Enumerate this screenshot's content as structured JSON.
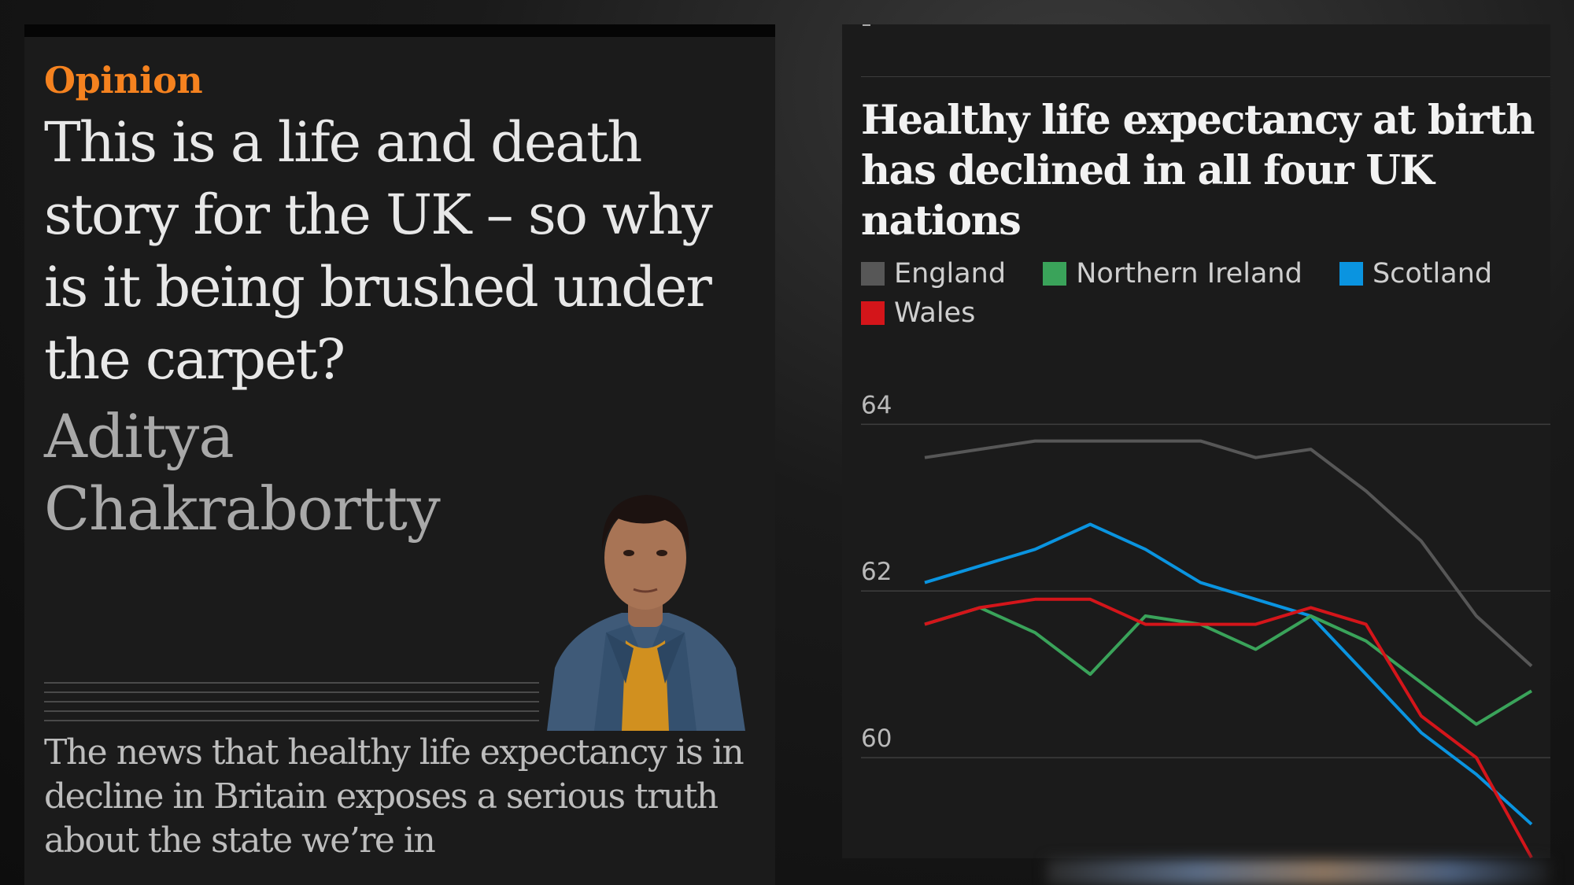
{
  "article": {
    "kicker": "Opinion",
    "headline": "This is a life and death story for the UK – so why is it being brushed under the carpet?",
    "author": "Aditya Chakrabortty",
    "standfirst": "The news that healthy life expectancy is in decline in Britain exposes a serious truth about the state we’re in"
  },
  "colors": {
    "kicker": "#f5821f",
    "england": "#575757",
    "northern_ireland": "#3aa35a",
    "scotland": "#0a94e0",
    "wales": "#d4151a"
  },
  "chart_data": {
    "type": "line",
    "title": "Healthy life expectancy at birth has declined in all four UK nations",
    "xlabel": "",
    "ylabel": "",
    "ylim": [
      59.0,
      64.4
    ],
    "yticks": [
      60,
      62,
      64
    ],
    "grid": true,
    "legend_position": "top",
    "x": [
      1,
      2,
      3,
      4,
      5,
      6,
      7,
      8,
      9,
      10,
      11,
      12
    ],
    "series": [
      {
        "name": "England",
        "color": "#575757",
        "values": [
          63.6,
          63.7,
          63.8,
          63.8,
          63.8,
          63.8,
          63.6,
          63.7,
          63.2,
          62.6,
          61.7,
          61.1
        ]
      },
      {
        "name": "Northern Ireland",
        "color": "#3aa35a",
        "values": [
          61.6,
          61.8,
          61.5,
          61.0,
          61.7,
          61.6,
          61.3,
          61.7,
          61.4,
          60.9,
          60.4,
          60.8
        ]
      },
      {
        "name": "Scotland",
        "color": "#0a94e0",
        "values": [
          62.1,
          62.3,
          62.5,
          62.8,
          62.5,
          62.1,
          61.9,
          61.7,
          61.0,
          60.3,
          59.8,
          59.2
        ]
      },
      {
        "name": "Wales",
        "color": "#d4151a",
        "values": [
          61.6,
          61.8,
          61.9,
          61.9,
          61.6,
          61.6,
          61.6,
          61.8,
          61.6,
          60.5,
          60.0,
          58.8
        ]
      }
    ]
  }
}
